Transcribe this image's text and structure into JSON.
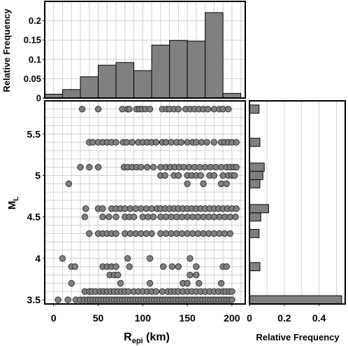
{
  "chart_data": [
    {
      "id": "top-histogram",
      "type": "bar",
      "ylabel": "Relative Frequency",
      "ylim": [
        0,
        0.25
      ],
      "yticks": [
        0,
        0.05,
        0.1,
        0.15,
        0.2
      ],
      "ytick_labels": [
        "0",
        "0.05",
        "0.1",
        "0.15",
        "0.2"
      ],
      "x_range": [
        -10,
        215
      ],
      "bins": [
        {
          "start": -10,
          "end": 10,
          "value": 0.01
        },
        {
          "start": 10,
          "end": 30,
          "value": 0.022
        },
        {
          "start": 30,
          "end": 50,
          "value": 0.055
        },
        {
          "start": 50,
          "end": 70,
          "value": 0.085
        },
        {
          "start": 70,
          "end": 90,
          "value": 0.092
        },
        {
          "start": 90,
          "end": 110,
          "value": 0.071
        },
        {
          "start": 110,
          "end": 130,
          "value": 0.137
        },
        {
          "start": 130,
          "end": 150,
          "value": 0.149
        },
        {
          "start": 150,
          "end": 170,
          "value": 0.147
        },
        {
          "start": 170,
          "end": 190,
          "value": 0.221
        },
        {
          "start": 190,
          "end": 210,
          "value": 0.012
        }
      ],
      "grid": true,
      "bar_color": "#808080"
    },
    {
      "id": "scatter",
      "type": "scatter",
      "xlabel": "R",
      "xlabel_subscript": "epi",
      "xlabel_suffix": " (km)",
      "ylabel": "M",
      "ylabel_subscript": "L",
      "xlim": [
        -10,
        215
      ],
      "ylim": [
        3.45,
        5.9
      ],
      "xticks": [
        0,
        50,
        100,
        150,
        200
      ],
      "xtick_labels": [
        "0",
        "50",
        "100",
        "150",
        "200"
      ],
      "yticks": [
        3.5,
        4,
        4.5,
        5,
        5.5
      ],
      "ytick_labels": [
        "3.5",
        "4",
        "4.5",
        "5",
        "5.5"
      ],
      "grid": true,
      "marker_color": "#808080",
      "rows": [
        {
          "y": 5.8,
          "x": [
            32,
            50,
            77,
            83,
            85,
            93,
            96,
            99,
            103,
            108,
            122,
            127,
            130,
            135,
            140,
            148,
            153,
            158,
            163,
            168,
            173,
            180,
            186,
            190,
            196
          ]
        },
        {
          "y": 5.4,
          "x": [
            40,
            44,
            50,
            55,
            60,
            65,
            70,
            78,
            82,
            88,
            95,
            100,
            105,
            110,
            115,
            122,
            126,
            132,
            138,
            143,
            150,
            156,
            160,
            166,
            172,
            180,
            188,
            192,
            196,
            200,
            205
          ]
        },
        {
          "y": 5.1,
          "x": [
            30,
            40,
            50,
            79,
            83,
            88,
            93,
            98,
            105,
            112,
            120,
            126,
            131,
            136,
            141,
            146,
            152,
            158,
            164,
            170,
            176,
            182,
            188,
            194,
            198,
            202,
            205
          ]
        },
        {
          "y": 5.0,
          "x": [
            120,
            125,
            135,
            140,
            150,
            155,
            160,
            165,
            175,
            180,
            190,
            196,
            200,
            203
          ]
        },
        {
          "y": 4.9,
          "x": [
            17,
            150,
            168,
            188,
            194
          ]
        },
        {
          "y": 4.6,
          "x": [
            36,
            50,
            55,
            65,
            70,
            75,
            80,
            86,
            92,
            98,
            104,
            110,
            116,
            120,
            125,
            130,
            135,
            140,
            145,
            150,
            155,
            160,
            165,
            170,
            175,
            180,
            185,
            190,
            195,
            200,
            205
          ]
        },
        {
          "y": 4.5,
          "x": [
            35,
            55,
            62,
            70,
            80,
            85,
            90,
            100,
            106,
            112,
            120,
            126,
            132,
            138,
            144,
            150,
            156,
            162,
            168,
            174,
            180,
            186,
            192,
            198,
            204
          ]
        },
        {
          "y": 4.3,
          "x": [
            40,
            50,
            55,
            60,
            65,
            70,
            80,
            86,
            92,
            98,
            104,
            110,
            120,
            126,
            132,
            138,
            144,
            150,
            156,
            162,
            168,
            174,
            180,
            186,
            192,
            198
          ]
        },
        {
          "y": 4.0,
          "x": [
            10,
            83,
            108,
            153
          ]
        },
        {
          "y": 3.9,
          "x": [
            20,
            24,
            55,
            60,
            65,
            70,
            85,
            123,
            133,
            140,
            160,
            190,
            194
          ]
        },
        {
          "y": 3.8,
          "x": [
            63,
            68,
            72,
            153,
            160
          ]
        },
        {
          "y": 3.7,
          "x": [
            20,
            75,
            108,
            145,
            150,
            163,
            188
          ]
        },
        {
          "y": 3.6,
          "x": [
            35,
            40,
            43,
            47,
            52,
            56,
            60,
            64,
            68,
            72,
            76,
            80,
            84,
            90,
            95,
            100,
            105,
            110,
            115,
            122,
            128,
            132,
            136,
            140,
            145,
            150,
            155,
            160,
            165,
            170,
            175,
            180,
            185,
            190,
            193,
            197,
            200
          ]
        },
        {
          "y": 3.5,
          "x": [
            5,
            16,
            25,
            30,
            34,
            38,
            41,
            44,
            47,
            50,
            53,
            56,
            59,
            62,
            65,
            68,
            71,
            74,
            77,
            80,
            83,
            86,
            89,
            92,
            95,
            98,
            101,
            104,
            107,
            110,
            113,
            116,
            119,
            122,
            125,
            128,
            131,
            134,
            137,
            140,
            143,
            146,
            149,
            152,
            155,
            158,
            161,
            164,
            167,
            170,
            173,
            176,
            179,
            182,
            185,
            188,
            191,
            194,
            197,
            200
          ]
        }
      ]
    },
    {
      "id": "right-histogram",
      "type": "bar",
      "orientation": "horizontal",
      "xlabel": "Relative Frequency",
      "xlim": [
        0,
        0.55
      ],
      "xticks": [
        0,
        0.2,
        0.4
      ],
      "xtick_labels": [
        "0",
        "0.2",
        "0.4"
      ],
      "bins": [
        {
          "start": 3.45,
          "end": 3.55,
          "value": 0.53
        },
        {
          "start": 3.55,
          "end": 3.65,
          "value": 0.0
        },
        {
          "start": 3.65,
          "end": 3.75,
          "value": 0.0
        },
        {
          "start": 3.75,
          "end": 3.85,
          "value": 0.003
        },
        {
          "start": 3.85,
          "end": 3.95,
          "value": 0.06
        },
        {
          "start": 3.95,
          "end": 4.25,
          "value": 0.0
        },
        {
          "start": 4.25,
          "end": 4.35,
          "value": 0.055
        },
        {
          "start": 4.35,
          "end": 4.45,
          "value": 0.0
        },
        {
          "start": 4.45,
          "end": 4.55,
          "value": 0.065
        },
        {
          "start": 4.55,
          "end": 4.65,
          "value": 0.11
        },
        {
          "start": 4.85,
          "end": 4.95,
          "value": 0.06
        },
        {
          "start": 4.95,
          "end": 5.05,
          "value": 0.077
        },
        {
          "start": 5.05,
          "end": 5.15,
          "value": 0.085
        },
        {
          "start": 5.35,
          "end": 5.45,
          "value": 0.06
        },
        {
          "start": 5.75,
          "end": 5.85,
          "value": 0.055
        }
      ],
      "grid": true,
      "bar_color": "#808080"
    }
  ]
}
